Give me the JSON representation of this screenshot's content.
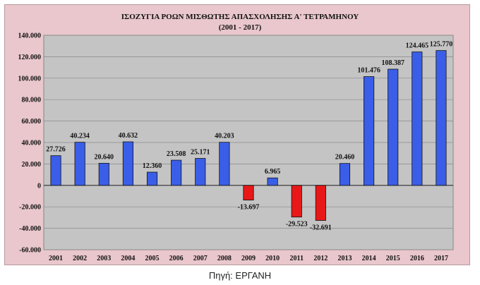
{
  "chart_data": {
    "type": "bar",
    "title": "ΙΣΟΖΥΓΙΑ ΡΟΩΝ ΜΙΣΘΩΤΗΣ ΑΠΑΣΧΟΛΗΣΗΣ Α' ΤΕΤΡΑΜΗΝΟΥ",
    "subtitle": "(2001 - 2017)",
    "xlabel": "",
    "ylabel": "",
    "categories": [
      "2001",
      "2002",
      "2003",
      "2004",
      "2005",
      "2006",
      "2007",
      "2008",
      "2009",
      "2010",
      "2011",
      "2012",
      "2013",
      "2014",
      "2015",
      "2016",
      "2017"
    ],
    "values": [
      27726,
      40234,
      20640,
      40632,
      12360,
      23508,
      25171,
      40203,
      -13697,
      6965,
      -29523,
      -32691,
      20460,
      101476,
      108387,
      124465,
      125770
    ],
    "value_labels": [
      "27.726",
      "40.234",
      "20.640",
      "40.632",
      "12.360",
      "23.508",
      "25.171",
      "40.203",
      "-13.697",
      "6.965",
      "-29.523",
      "-32.691",
      "20.460",
      "101.476",
      "108.387",
      "124.465",
      "125.770"
    ],
    "ylim": [
      -60000,
      140000
    ],
    "yticks": [
      140000,
      120000,
      100000,
      80000,
      60000,
      40000,
      20000,
      0,
      -20000,
      -40000,
      -60000
    ],
    "ytick_labels": [
      "140.000",
      "120.000",
      "100.000",
      "80.000",
      "60.000",
      "40.000",
      "20.000",
      "0",
      "-20.000",
      "-40.000",
      "-60.000"
    ],
    "grid": true,
    "legend": "none",
    "colors": {
      "positive": "#3a5ee8",
      "negative": "#e81818",
      "plot_bg": "#c4c4c4",
      "frame_bg": "#e9c7cc"
    }
  },
  "source": "Πηγή: ΕΡΓΑΝΗ"
}
